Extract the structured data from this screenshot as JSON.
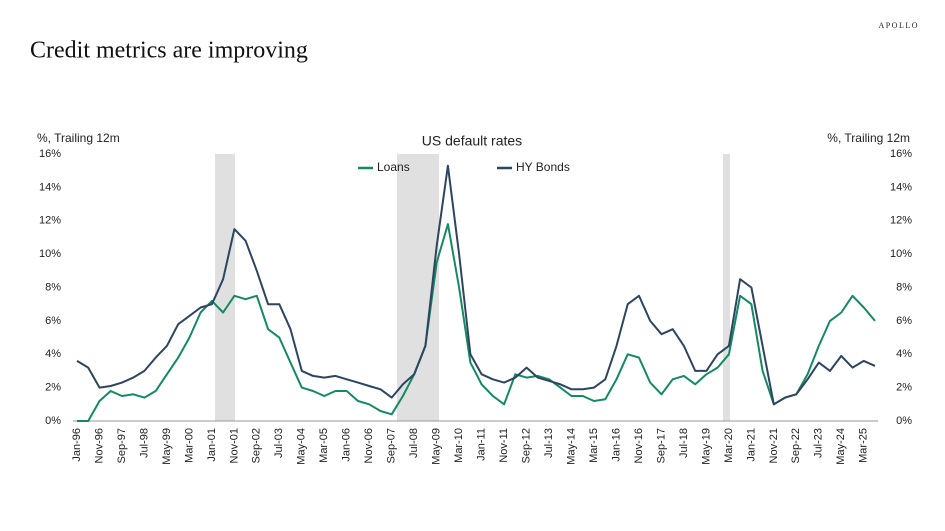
{
  "brand": "APOLLO",
  "headline": "Credit metrics are improving",
  "chart_data": {
    "type": "line",
    "title": "US default rates",
    "y_label": "%, Trailing 12m",
    "y2_label": "%, Trailing 12m",
    "categories": [
      "Jan-96",
      null,
      "Nov-96",
      null,
      "Sep-97",
      null,
      "Jul-98",
      null,
      "May-99",
      null,
      "Mar-00",
      null,
      "Jan-01",
      null,
      "Nov-01",
      null,
      "Sep-02",
      null,
      "Jul-03",
      null,
      "May-04",
      null,
      "Mar-05",
      null,
      "Jan-06",
      null,
      "Nov-06",
      null,
      "Sep-07",
      null,
      "Jul-08",
      null,
      "May-09",
      null,
      "Mar-10",
      null,
      "Jan-11",
      null,
      "Nov-11",
      null,
      "Sep-12",
      null,
      "Jul-13",
      null,
      "May-14",
      null,
      "Mar-15",
      null,
      "Jan-16",
      null,
      "Nov-16",
      null,
      "Sep-17",
      null,
      "Jul-18",
      null,
      "May-19",
      null,
      "Mar-20",
      null,
      "Jan-21",
      null,
      "Nov-21",
      null,
      "Sep-22",
      null,
      "Jul-23",
      null,
      "May-24",
      null,
      "Mar-25",
      null
    ],
    "series": [
      {
        "name": "Loans",
        "color": "#138a62",
        "values": [
          0,
          0,
          1.2,
          1.8,
          1.5,
          1.6,
          1.4,
          1.8,
          2.8,
          3.8,
          5.0,
          6.5,
          7.2,
          6.5,
          7.5,
          7.3,
          7.5,
          5.5,
          5.0,
          3.5,
          2.0,
          1.8,
          1.5,
          1.8,
          1.8,
          1.2,
          1.0,
          0.6,
          0.4,
          1.5,
          2.8,
          4.5,
          9.5,
          11.8,
          8.0,
          3.5,
          2.2,
          1.5,
          1.0,
          2.8,
          2.6,
          2.7,
          2.5,
          2.0,
          1.5,
          1.5,
          1.2,
          1.3,
          2.5,
          4.0,
          3.8,
          2.3,
          1.6,
          2.5,
          2.7,
          2.2,
          2.8,
          3.2,
          4.0,
          7.5,
          7.0,
          3.0,
          1.0,
          1.4,
          1.6,
          2.8,
          4.5,
          6.0,
          6.5,
          7.5,
          6.8,
          6.0
        ]
      },
      {
        "name": "HY Bonds",
        "color": "#2d4561",
        "values": [
          3.6,
          3.2,
          2.0,
          2.1,
          2.3,
          2.6,
          3.0,
          3.8,
          4.5,
          5.8,
          6.3,
          6.8,
          7.0,
          8.5,
          11.5,
          10.8,
          9.0,
          7.0,
          7.0,
          5.5,
          3.0,
          2.7,
          2.6,
          2.7,
          2.5,
          2.3,
          2.1,
          1.9,
          1.4,
          2.2,
          2.8,
          4.5,
          10.5,
          15.3,
          10.0,
          4.0,
          2.8,
          2.5,
          2.3,
          2.6,
          3.2,
          2.6,
          2.4,
          2.2,
          1.9,
          1.9,
          2.0,
          2.5,
          4.5,
          7.0,
          7.5,
          6.0,
          5.2,
          5.5,
          4.5,
          3.0,
          3.0,
          4.0,
          4.5,
          8.5,
          8.0,
          4.5,
          1.0,
          1.4,
          1.6,
          2.5,
          3.5,
          3.0,
          3.9,
          3.2,
          3.6,
          3.3
        ]
      }
    ],
    "ylim": [
      0,
      16
    ],
    "yticks": [
      {
        "value": 0,
        "label": "0%"
      },
      {
        "value": 2,
        "label": "2%"
      },
      {
        "value": 4,
        "label": "4%"
      },
      {
        "value": 6,
        "label": "6%"
      },
      {
        "value": 8,
        "label": "8%"
      },
      {
        "value": 10,
        "label": "10%"
      },
      {
        "value": 12,
        "label": "12%"
      },
      {
        "value": 14,
        "label": "14%"
      },
      {
        "value": 16,
        "label": "16%"
      }
    ],
    "y2lim": [
      0,
      16
    ],
    "y2ticks": [
      {
        "value": 0,
        "label": "0%"
      },
      {
        "value": 2,
        "label": "2%"
      },
      {
        "value": 4,
        "label": "4%"
      },
      {
        "value": 6,
        "label": "6%"
      },
      {
        "value": 8,
        "label": "8%"
      },
      {
        "value": 10,
        "label": "10%"
      },
      {
        "value": 12,
        "label": "12%"
      },
      {
        "value": 14,
        "label": "14%"
      },
      {
        "value": 16,
        "label": "16%"
      }
    ],
    "grid": false
  }
}
